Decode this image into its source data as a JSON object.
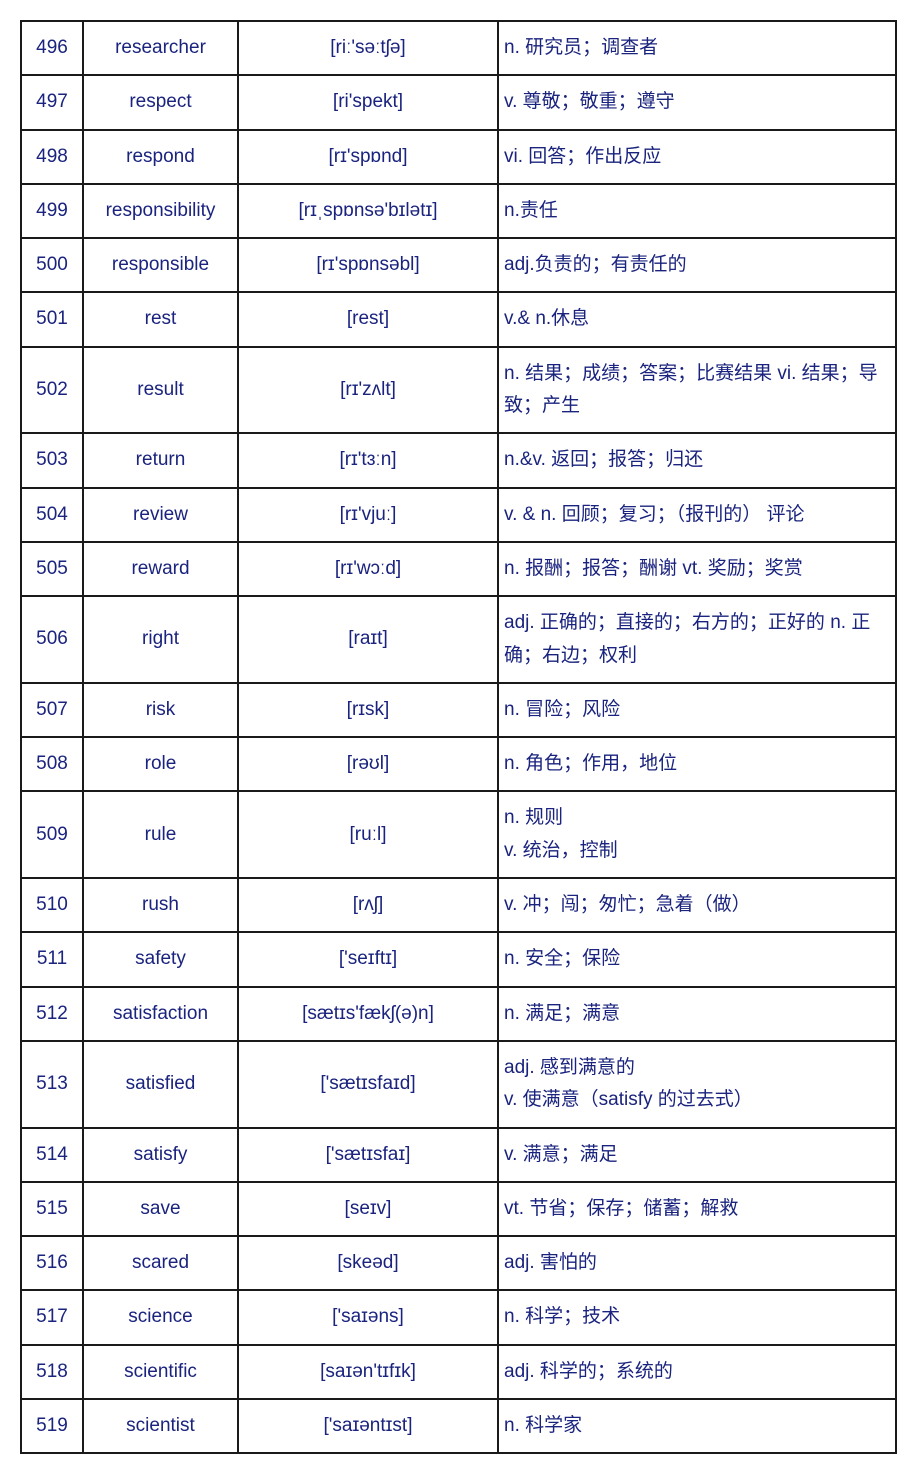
{
  "table": {
    "border_color": "#1a1a1a",
    "text_color": "#1a237e",
    "background_color": "#ffffff",
    "font_size": 19,
    "columns": {
      "num_width": 62,
      "word_width": 155,
      "phonetic_width": 260,
      "def_width": 398
    },
    "rows": [
      {
        "num": "496",
        "word": "researcher",
        "phonetic": "[riː'səːtʃə]",
        "def": "n. 研究员；调查者"
      },
      {
        "num": "497",
        "word": "respect",
        "phonetic": "[ri'spekt]",
        "def": "v. 尊敬；敬重；遵守"
      },
      {
        "num": "498",
        "word": "respond",
        "phonetic": "[rɪ'spɒnd]",
        "def": "vi. 回答；作出反应"
      },
      {
        "num": "499",
        "word": "responsibility",
        "phonetic": "[rɪˌspɒnsə'bɪlətɪ]",
        "def": "n.责任"
      },
      {
        "num": "500",
        "word": "responsible",
        "phonetic": "[rɪ'spɒnsəbl]",
        "def": "adj.负责的；有责任的"
      },
      {
        "num": "501",
        "word": "rest",
        "phonetic": "[rest]",
        "def": "v.& n.休息"
      },
      {
        "num": "502",
        "word": "result",
        "phonetic": "[rɪ'zʌlt]",
        "def": "n. 结果；成绩；答案；比赛结果 vi. 结果；导致；产生"
      },
      {
        "num": "503",
        "word": "return",
        "phonetic": "[rɪ'tɜːn]",
        "def": "n.&v. 返回；报答；归还"
      },
      {
        "num": "504",
        "word": "review",
        "phonetic": "[rɪ'vjuː]",
        "def": "v. & n. 回顾；复习；（报刊的） 评论"
      },
      {
        "num": "505",
        "word": "reward",
        "phonetic": "[rɪ'wɔːd]",
        "def": "n. 报酬；报答；酬谢 vt. 奖励；奖赏"
      },
      {
        "num": "506",
        "word": "right",
        "phonetic": "[raɪt]",
        "def": "adj. 正确的；直接的；右方的；正好的 n. 正确；右边；权利"
      },
      {
        "num": "507",
        "word": "risk",
        "phonetic": "[rɪsk]",
        "def": "n. 冒险；风险"
      },
      {
        "num": "508",
        "word": "role",
        "phonetic": "[rəʊl]",
        "def": "n. 角色；作用，地位"
      },
      {
        "num": "509",
        "word": "rule",
        "phonetic": "[ruːl]",
        "def": "n. 规则\nv. 统治，控制"
      },
      {
        "num": "510",
        "word": "rush",
        "phonetic": "[rʌʃ]",
        "def": "v. 冲；闯；匆忙；急着（做）"
      },
      {
        "num": "511",
        "word": "safety",
        "phonetic": "['seɪftɪ]",
        "def": "n. 安全；保险"
      },
      {
        "num": "512",
        "word": "satisfaction",
        "phonetic": "[sætɪs'fækʃ(ə)n]",
        "def": "n. 满足；满意"
      },
      {
        "num": "513",
        "word": "satisfied",
        "phonetic": "['sætɪsfaɪd]",
        "def": "adj. 感到满意的\nv. 使满意（satisfy 的过去式）"
      },
      {
        "num": "514",
        "word": "satisfy",
        "phonetic": "['sætɪsfaɪ]",
        "def": "v. 满意；满足"
      },
      {
        "num": "515",
        "word": "save",
        "phonetic": "[seɪv]",
        "def": "vt. 节省；保存；储蓄；解救"
      },
      {
        "num": "516",
        "word": "scared",
        "phonetic": "[skeəd]",
        "def": "adj. 害怕的"
      },
      {
        "num": "517",
        "word": "science",
        "phonetic": "['saɪəns]",
        "def": "n. 科学；技术"
      },
      {
        "num": "518",
        "word": "scientific",
        "phonetic": "[saɪən'tɪfɪk]",
        "def": "adj. 科学的；系统的"
      },
      {
        "num": "519",
        "word": "scientist",
        "phonetic": "['saɪəntɪst]",
        "def": "n. 科学家"
      }
    ]
  }
}
